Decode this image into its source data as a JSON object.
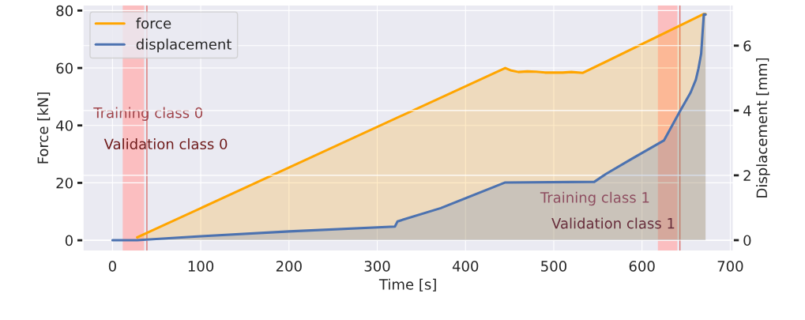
{
  "chart_data": {
    "type": "area",
    "xlabel": "Time [s]",
    "ylabel": "Force [kN]",
    "y2label": "Displacement [mm]",
    "series": [
      {
        "name": "force",
        "color": "#ffa500",
        "x": [
          28,
          445,
          451,
          460,
          470,
          480,
          490,
          510,
          520,
          533,
          670,
          672
        ],
        "values": [
          1,
          60,
          59.2,
          58.6,
          58.8,
          58.7,
          58.4,
          58.4,
          58.6,
          58.3,
          78.8,
          78.8
        ]
      },
      {
        "name": "displacement",
        "color": "#4c72b0",
        "axis": "y2",
        "x": [
          0,
          28,
          100,
          200,
          320,
          323,
          372,
          445,
          546,
          559,
          589,
          625,
          643,
          655,
          661,
          664,
          667,
          670,
          672
        ],
        "values": [
          0,
          0,
          0.12,
          0.27,
          0.42,
          0.58,
          0.99,
          1.78,
          1.8,
          2.04,
          2.52,
          3.08,
          3.98,
          4.55,
          4.95,
          5.3,
          5.75,
          6.96,
          6.96
        ]
      }
    ],
    "xlim": [
      -33.5,
      703.5
    ],
    "xticks": [
      0,
      100,
      200,
      300,
      400,
      500,
      600,
      700
    ],
    "ylim": [
      -3.8,
      82
    ],
    "yticks": [
      0,
      20,
      40,
      60,
      80
    ],
    "y2lim": [
      -0.34,
      7.26
    ],
    "y2ticks": [
      0,
      2,
      4,
      6
    ],
    "bands": [
      {
        "axis": "x",
        "from": 11.6,
        "to": 35.8,
        "color": "#ffb3b3",
        "label": "Training class 0"
      },
      {
        "axis": "x",
        "from": 618,
        "to": 640,
        "color": "#ffb3b3",
        "label": "Training class 1"
      }
    ],
    "ref_lines": [
      {
        "axis": "x",
        "value": 39,
        "color": "#d9534f",
        "label": "Validation class 0"
      },
      {
        "axis": "x",
        "value": 643,
        "color": "#d9534f",
        "label": "Validation class 1"
      }
    ],
    "grid": true,
    "legend": "top left"
  }
}
